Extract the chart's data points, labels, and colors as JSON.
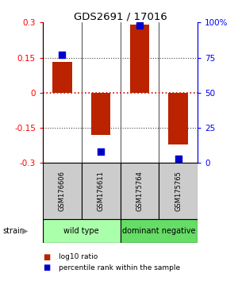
{
  "title": "GDS2691 / 17016",
  "samples": [
    "GSM176606",
    "GSM176611",
    "GSM175764",
    "GSM175765"
  ],
  "log10_ratio": [
    0.13,
    -0.18,
    0.29,
    -0.22
  ],
  "percentile_rank": [
    77,
    8,
    98,
    3
  ],
  "groups": [
    {
      "label": "wild type",
      "indices": [
        0,
        1
      ],
      "color": "#aaffaa"
    },
    {
      "label": "dominant negative",
      "indices": [
        2,
        3
      ],
      "color": "#66dd66"
    }
  ],
  "strain_label": "strain",
  "ylim_left": [
    -0.3,
    0.3
  ],
  "ylim_right": [
    0,
    100
  ],
  "yticks_left": [
    -0.3,
    -0.15,
    0,
    0.15,
    0.3
  ],
  "yticks_right": [
    0,
    25,
    50,
    75,
    100
  ],
  "ytick_labels_right": [
    "0",
    "25",
    "50",
    "75",
    "100%"
  ],
  "bar_color": "#bb2200",
  "dot_color": "#0000cc",
  "zero_line_color": "#cc0000",
  "dotted_line_color": "#444444",
  "legend_items": [
    "log10 ratio",
    "percentile rank within the sample"
  ],
  "background_color": "#ffffff",
  "plot_bg": "#ffffff",
  "label_area_bg": "#cccccc",
  "bar_width": 0.5,
  "dot_size": 30
}
